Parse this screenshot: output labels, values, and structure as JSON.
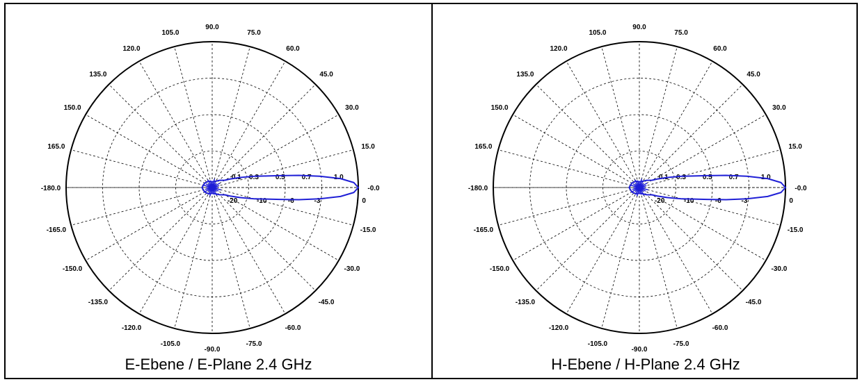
{
  "chart_data": [
    {
      "type": "polar-line",
      "caption": "E-Ebene / E-Plane 2.4 GHz",
      "angle_unit": "deg",
      "angle_labels": [
        "-0.0",
        "15.0",
        "30.0",
        "45.0",
        "60.0",
        "75.0",
        "90.0",
        "105.0",
        "120.0",
        "135.0",
        "150.0",
        "165.0",
        "-180.0",
        "-165.0",
        "-150.0",
        "-135.0",
        "-120.0",
        "-105.0",
        "-90.0",
        "-75.0",
        "-60.0",
        "-45.0",
        "-30.0",
        "-15.0"
      ],
      "upper_radial_labels": [
        "0.1",
        "0.3",
        "0.5",
        "0.7",
        "1.0"
      ],
      "lower_radial_labels": [
        "-20",
        "-10",
        "-6",
        "-3",
        "0"
      ],
      "series": [
        {
          "color": "#1f1fd6",
          "angles_deg": [
            -90,
            -60,
            -45,
            -30,
            -25,
            -20,
            -15,
            -12,
            -10,
            -8,
            -6,
            -4,
            -2,
            0,
            2,
            4,
            6,
            8,
            10,
            12,
            15,
            20,
            25,
            30,
            45,
            60,
            90,
            120,
            150,
            180,
            -150,
            -120,
            -90
          ],
          "magnitude": [
            0.04,
            0.05,
            0.07,
            0.1,
            0.14,
            0.2,
            0.3,
            0.38,
            0.47,
            0.6,
            0.74,
            0.88,
            0.97,
            1.0,
            0.97,
            0.88,
            0.74,
            0.6,
            0.47,
            0.38,
            0.3,
            0.2,
            0.14,
            0.1,
            0.07,
            0.05,
            0.04,
            0.05,
            0.06,
            0.07,
            0.06,
            0.05,
            0.04
          ]
        }
      ]
    },
    {
      "type": "polar-line",
      "caption": "H-Ebene / H-Plane 2.4 GHz",
      "angle_unit": "deg",
      "angle_labels": [
        "-0.0",
        "15.0",
        "30.0",
        "45.0",
        "60.0",
        "75.0",
        "90.0",
        "105.0",
        "120.0",
        "135.0",
        "150.0",
        "165.0",
        "-180.0",
        "-165.0",
        "-150.0",
        "-135.0",
        "-120.0",
        "-105.0",
        "-90.0",
        "-75.0",
        "-60.0",
        "-45.0",
        "-30.0",
        "-15.0"
      ],
      "upper_radial_labels": [
        "0.1",
        "0.3",
        "0.5",
        "0.7",
        "1.0"
      ],
      "lower_radial_labels": [
        "-20",
        "-10",
        "-6",
        "-3",
        "0"
      ],
      "series": [
        {
          "color": "#1f1fd6",
          "angles_deg": [
            -90,
            -60,
            -45,
            -30,
            -25,
            -20,
            -15,
            -12,
            -10,
            -8,
            -6,
            -4,
            -2,
            0,
            2,
            4,
            6,
            8,
            10,
            12,
            15,
            20,
            25,
            30,
            45,
            60,
            90,
            120,
            150,
            180,
            -150,
            -120,
            -90
          ],
          "magnitude": [
            0.04,
            0.05,
            0.07,
            0.1,
            0.14,
            0.2,
            0.3,
            0.38,
            0.47,
            0.6,
            0.74,
            0.88,
            0.97,
            1.0,
            0.97,
            0.88,
            0.74,
            0.6,
            0.47,
            0.38,
            0.3,
            0.2,
            0.14,
            0.1,
            0.07,
            0.05,
            0.04,
            0.05,
            0.06,
            0.07,
            0.06,
            0.05,
            0.04
          ]
        }
      ]
    }
  ]
}
